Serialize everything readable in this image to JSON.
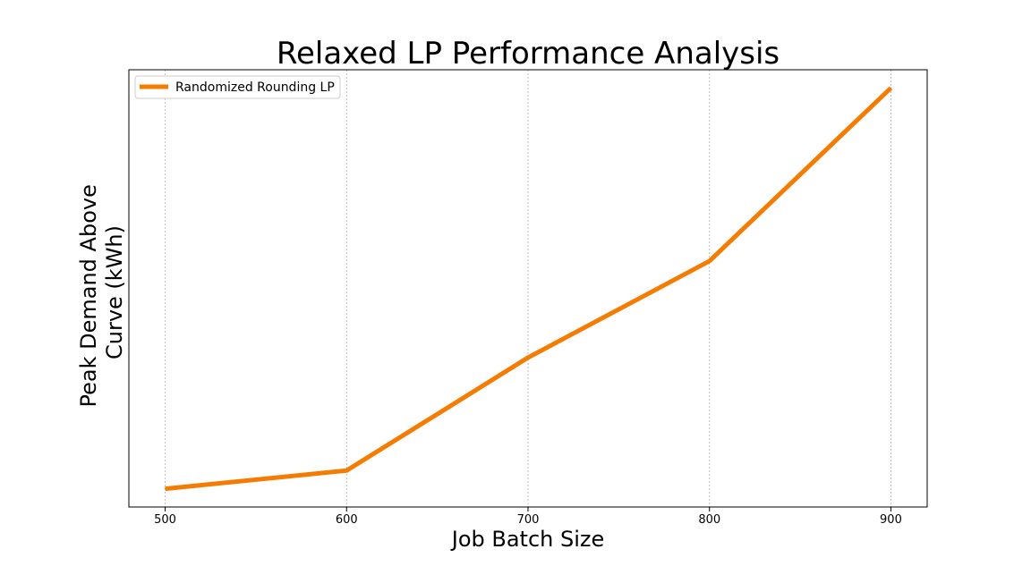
{
  "chart_data": {
    "type": "line",
    "title": "Relaxed LP Performance Analysis",
    "xlabel": "Job Batch Size",
    "ylabel_lines": [
      "Peak Demand Above",
      "Curve (kWh)"
    ],
    "x": [
      500,
      600,
      700,
      800,
      900
    ],
    "xlim": [
      480,
      920
    ],
    "ylim": [
      0,
      24
    ],
    "xticks": [
      "500",
      "600",
      "700",
      "800",
      "900"
    ],
    "y_ticks_shown": false,
    "grid": "x-dashed",
    "legend_position": "upper-left",
    "series": [
      {
        "name": "Randomized Rounding LP",
        "color": "#f57c00",
        "values": [
          1,
          2,
          8.2,
          13.5,
          23
        ]
      }
    ]
  }
}
